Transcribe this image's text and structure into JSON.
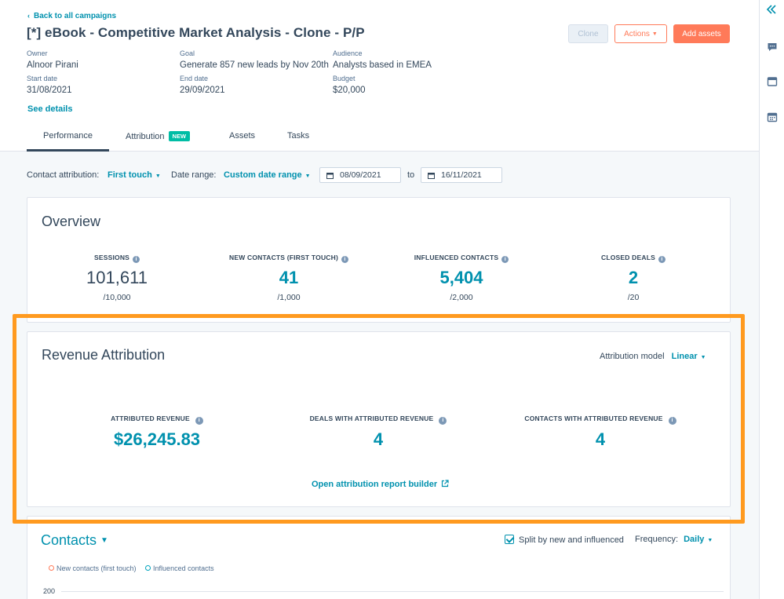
{
  "back_link": "Back to all campaigns",
  "campaign_title": "[*] eBook - Competitive Market Analysis - Clone - P/P",
  "buttons": {
    "clone": "Clone",
    "actions": "Actions",
    "add_assets": "Add assets"
  },
  "meta": {
    "owner_label": "Owner",
    "owner": "Alnoor Pirani",
    "goal_label": "Goal",
    "goal": "Generate 857 new leads by Nov 20th",
    "audience_label": "Audience",
    "audience": "Analysts based in EMEA",
    "start_label": "Start date",
    "start": "31/08/2021",
    "end_label": "End date",
    "end": "29/09/2021",
    "budget_label": "Budget",
    "budget": "$20,000"
  },
  "see_details": "See details",
  "tabs": [
    "Performance",
    "Attribution",
    "Assets",
    "Tasks"
  ],
  "new_badge": "NEW",
  "filters": {
    "contact_attr_label": "Contact attribution:",
    "contact_attr_value": "First touch",
    "date_range_label": "Date range:",
    "date_range_value": "Custom date range",
    "from_date": "08/09/2021",
    "to_label": "to",
    "to_date": "16/11/2021"
  },
  "overview": {
    "title": "Overview",
    "kpis": [
      {
        "label": "SESSIONS",
        "value": "101,611",
        "goal": "/10,000"
      },
      {
        "label": "NEW CONTACTS (FIRST TOUCH)",
        "value": "41",
        "goal": "/1,000"
      },
      {
        "label": "INFLUENCED CONTACTS",
        "value": "5,404",
        "goal": "/2,000"
      },
      {
        "label": "CLOSED DEALS",
        "value": "2",
        "goal": "/20"
      }
    ]
  },
  "revenue": {
    "title": "Revenue Attribution",
    "model_label": "Attribution model",
    "model_value": "Linear",
    "kpis": [
      {
        "label": "ATTRIBUTED REVENUE",
        "value": "$26,245.83"
      },
      {
        "label": "DEALS WITH ATTRIBUTED REVENUE",
        "value": "4"
      },
      {
        "label": "CONTACTS WITH ATTRIBUTED REVENUE",
        "value": "4"
      }
    ],
    "report_link": "Open attribution report builder"
  },
  "contacts": {
    "title": "Contacts",
    "split_label": "Split by new and influenced",
    "frequency_label": "Frequency:",
    "frequency_value": "Daily",
    "legend_new": "New contacts (first touch)",
    "legend_influenced": "Influenced contacts",
    "y_tick": "200"
  },
  "colors": {
    "accent": "#0091ae",
    "primary_button": "#ff7a59",
    "highlight": "#ff9a1f",
    "badge": "#00bda5"
  }
}
